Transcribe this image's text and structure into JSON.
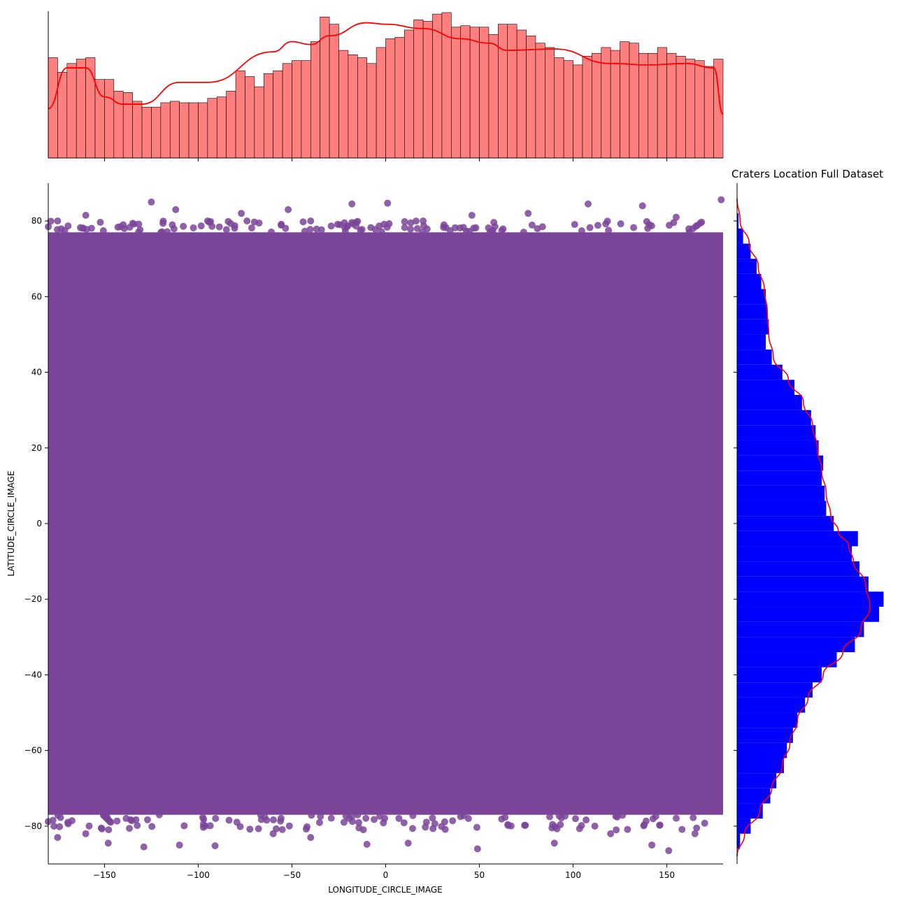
{
  "chart_data": [
    {
      "type": "scatter",
      "title": "Craters Location Full Dataset",
      "xlabel": "LONGITUDE_CIRCLE_IMAGE",
      "ylabel": "LATITUDE_CIRCLE_IMAGE",
      "xlim": [
        -180,
        180
      ],
      "ylim": [
        -90,
        90
      ],
      "x_ticks": [
        -150,
        -100,
        -50,
        0,
        50,
        100,
        150
      ],
      "y_ticks": [
        -80,
        -60,
        -40,
        -20,
        0,
        20,
        40,
        60,
        80
      ],
      "x_tick_labels": [
        "−150",
        "−100",
        "−50",
        "0",
        "50",
        "100",
        "150"
      ],
      "y_tick_labels": [
        "−80",
        "−60",
        "−40",
        "−20",
        "0",
        "20",
        "40",
        "60",
        "80"
      ],
      "point_color": "#7a4599",
      "grid": false,
      "dense_region": {
        "lon": [
          -180,
          180
        ],
        "lat": [
          -77,
          77
        ]
      },
      "sparse_edge_samples": [
        {
          "lon": -175,
          "lat": 80
        },
        {
          "lon": -160,
          "lat": 81.5
        },
        {
          "lon": -140,
          "lat": 79
        },
        {
          "lon": -125,
          "lat": 85
        },
        {
          "lon": -112,
          "lat": 83
        },
        {
          "lon": -95,
          "lat": 80
        },
        {
          "lon": -77,
          "lat": 82
        },
        {
          "lon": -52,
          "lat": 83
        },
        {
          "lon": -40,
          "lat": 80
        },
        {
          "lon": -18,
          "lat": 84.5
        },
        {
          "lon": 1,
          "lat": 84.7
        },
        {
          "lon": 20,
          "lat": 80
        },
        {
          "lon": 46,
          "lat": 81.5
        },
        {
          "lon": 76,
          "lat": 82
        },
        {
          "lon": 108,
          "lat": 84.5
        },
        {
          "lon": 137,
          "lat": 84
        },
        {
          "lon": 155,
          "lat": 81
        },
        {
          "lon": 179,
          "lat": 85.6
        },
        {
          "lon": -175,
          "lat": -83
        },
        {
          "lon": -160,
          "lat": -82
        },
        {
          "lon": -148,
          "lat": -84.5
        },
        {
          "lon": -129,
          "lat": -85.5
        },
        {
          "lon": -110,
          "lat": -85
        },
        {
          "lon": -91,
          "lat": -85.2
        },
        {
          "lon": -60,
          "lat": -82
        },
        {
          "lon": -40,
          "lat": -83
        },
        {
          "lon": -10,
          "lat": -84.8
        },
        {
          "lon": 12,
          "lat": -84.5
        },
        {
          "lon": 49,
          "lat": -86
        },
        {
          "lon": 90,
          "lat": -84.5
        },
        {
          "lon": 120,
          "lat": -82
        },
        {
          "lon": 142,
          "lat": -85
        },
        {
          "lon": 151,
          "lat": -86.5
        },
        {
          "lon": 165,
          "lat": -82
        }
      ]
    },
    {
      "type": "bar",
      "subtype": "histogram_with_kde",
      "orientation": "vertical",
      "variable": "LONGITUDE_CIRCLE_IMAGE",
      "range": [
        -180,
        180
      ],
      "bins": 72,
      "fill_color": "#ff7f7f",
      "edge_color": "#000000",
      "kde_color": "#ff0000",
      "relative_counts": [
        0.69,
        0.59,
        0.65,
        0.68,
        0.69,
        0.54,
        0.54,
        0.46,
        0.45,
        0.39,
        0.35,
        0.35,
        0.38,
        0.39,
        0.38,
        0.38,
        0.38,
        0.41,
        0.42,
        0.46,
        0.6,
        0.56,
        0.49,
        0.58,
        0.6,
        0.65,
        0.67,
        0.67,
        0.8,
        0.97,
        0.92,
        0.74,
        0.71,
        0.69,
        0.65,
        0.76,
        0.82,
        0.83,
        0.88,
        0.95,
        0.94,
        0.99,
        1.0,
        0.9,
        0.91,
        0.9,
        0.9,
        0.85,
        0.92,
        0.92,
        0.88,
        0.84,
        0.79,
        0.76,
        0.69,
        0.67,
        0.64,
        0.7,
        0.72,
        0.76,
        0.74,
        0.8,
        0.79,
        0.72,
        0.72,
        0.76,
        0.72,
        0.7,
        0.68,
        0.67,
        0.63,
        0.68
      ],
      "kde_relative": [
        0.34,
        0.62,
        0.62,
        0.42,
        0.37,
        0.37,
        0.52,
        0.52,
        0.73,
        0.8,
        0.78,
        0.84,
        0.93,
        0.92,
        0.89,
        0.82,
        0.79,
        0.74,
        0.75,
        0.65,
        0.64,
        0.65,
        0.62,
        0.3
      ],
      "kde_x": [
        -180,
        -170,
        -160,
        -150,
        -140,
        -130,
        -110,
        -95,
        -60,
        -50,
        -40,
        -30,
        -10,
        0,
        20,
        40,
        55,
        65,
        90,
        120,
        140,
        160,
        175,
        180
      ]
    },
    {
      "type": "bar",
      "subtype": "histogram_with_kde",
      "orientation": "horizontal",
      "variable": "LATITUDE_CIRCLE_IMAGE",
      "range": [
        -90,
        90
      ],
      "fill_color": "#0000ff",
      "kde_color": "#ff0000",
      "relative_counts_lat": [
        {
          "lat": -88,
          "v": 0.0
        },
        {
          "lat": -84,
          "v": 0.02
        },
        {
          "lat": -80,
          "v": 0.09
        },
        {
          "lat": -76,
          "v": 0.17
        },
        {
          "lat": -72,
          "v": 0.22
        },
        {
          "lat": -68,
          "v": 0.26
        },
        {
          "lat": -64,
          "v": 0.31
        },
        {
          "lat": -60,
          "v": 0.33
        },
        {
          "lat": -56,
          "v": 0.37
        },
        {
          "lat": -52,
          "v": 0.4
        },
        {
          "lat": -48,
          "v": 0.45
        },
        {
          "lat": -44,
          "v": 0.5
        },
        {
          "lat": -40,
          "v": 0.56
        },
        {
          "lat": -36,
          "v": 0.66
        },
        {
          "lat": -32,
          "v": 0.78
        },
        {
          "lat": -28,
          "v": 0.84
        },
        {
          "lat": -24,
          "v": 0.94
        },
        {
          "lat": -20,
          "v": 0.97
        },
        {
          "lat": -16,
          "v": 0.87
        },
        {
          "lat": -12,
          "v": 0.81
        },
        {
          "lat": -8,
          "v": 0.76
        },
        {
          "lat": -4,
          "v": 0.8
        },
        {
          "lat": 0,
          "v": 0.64
        },
        {
          "lat": 4,
          "v": 0.59
        },
        {
          "lat": 8,
          "v": 0.58
        },
        {
          "lat": 12,
          "v": 0.56
        },
        {
          "lat": 16,
          "v": 0.57
        },
        {
          "lat": 20,
          "v": 0.54
        },
        {
          "lat": 24,
          "v": 0.52
        },
        {
          "lat": 28,
          "v": 0.49
        },
        {
          "lat": 32,
          "v": 0.43
        },
        {
          "lat": 36,
          "v": 0.38
        },
        {
          "lat": 40,
          "v": 0.3
        },
        {
          "lat": 44,
          "v": 0.23
        },
        {
          "lat": 48,
          "v": 0.19
        },
        {
          "lat": 52,
          "v": 0.21
        },
        {
          "lat": 56,
          "v": 0.2
        },
        {
          "lat": 60,
          "v": 0.19
        },
        {
          "lat": 64,
          "v": 0.16
        },
        {
          "lat": 68,
          "v": 0.13
        },
        {
          "lat": 72,
          "v": 0.09
        },
        {
          "lat": 76,
          "v": 0.04
        },
        {
          "lat": 80,
          "v": 0.01
        },
        {
          "lat": 84,
          "v": 0.0
        }
      ],
      "kde_relative_lat": [
        {
          "lat": -88,
          "v": 0.0
        },
        {
          "lat": -82,
          "v": 0.05
        },
        {
          "lat": -76,
          "v": 0.15
        },
        {
          "lat": -70,
          "v": 0.23
        },
        {
          "lat": -64,
          "v": 0.3
        },
        {
          "lat": -58,
          "v": 0.35
        },
        {
          "lat": -52,
          "v": 0.4
        },
        {
          "lat": -46,
          "v": 0.47
        },
        {
          "lat": -40,
          "v": 0.57
        },
        {
          "lat": -34,
          "v": 0.7
        },
        {
          "lat": -28,
          "v": 0.82
        },
        {
          "lat": -22,
          "v": 0.88
        },
        {
          "lat": -16,
          "v": 0.85
        },
        {
          "lat": -10,
          "v": 0.77
        },
        {
          "lat": -6,
          "v": 0.74
        },
        {
          "lat": -2,
          "v": 0.67
        },
        {
          "lat": 2,
          "v": 0.62
        },
        {
          "lat": 8,
          "v": 0.59
        },
        {
          "lat": 14,
          "v": 0.56
        },
        {
          "lat": 20,
          "v": 0.53
        },
        {
          "lat": 26,
          "v": 0.5
        },
        {
          "lat": 32,
          "v": 0.44
        },
        {
          "lat": 38,
          "v": 0.34
        },
        {
          "lat": 44,
          "v": 0.24
        },
        {
          "lat": 50,
          "v": 0.21
        },
        {
          "lat": 56,
          "v": 0.2
        },
        {
          "lat": 62,
          "v": 0.18
        },
        {
          "lat": 68,
          "v": 0.14
        },
        {
          "lat": 74,
          "v": 0.08
        },
        {
          "lat": 80,
          "v": 0.02
        },
        {
          "lat": 86,
          "v": 0.0
        }
      ]
    }
  ]
}
